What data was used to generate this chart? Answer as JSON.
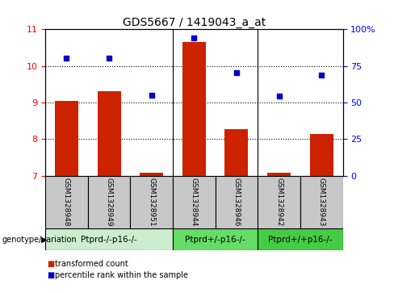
{
  "title": "GDS5667 / 1419043_a_at",
  "samples": [
    "GSM1328948",
    "GSM1328949",
    "GSM1328951",
    "GSM1328944",
    "GSM1328946",
    "GSM1328942",
    "GSM1328943"
  ],
  "bar_values": [
    9.05,
    9.3,
    7.08,
    10.65,
    8.28,
    7.08,
    8.15
  ],
  "dot_values": [
    10.22,
    10.22,
    9.2,
    10.76,
    9.82,
    9.18,
    9.76
  ],
  "bar_bottom": 7.0,
  "ylim_left": [
    7,
    11
  ],
  "ylim_right": [
    0,
    100
  ],
  "yticks_left": [
    7,
    8,
    9,
    10,
    11
  ],
  "yticks_right": [
    0,
    25,
    50,
    75,
    100
  ],
  "ytick_labels_right": [
    "0",
    "25",
    "50",
    "75",
    "100%"
  ],
  "groups": [
    {
      "label": "Ptprd-/-p16-/-",
      "start": 0,
      "end": 3,
      "color": "#cceecc"
    },
    {
      "label": "Ptprd+/-p16-/-",
      "start": 3,
      "end": 5,
      "color": "#66dd66"
    },
    {
      "label": "Ptprd+/+p16-/-",
      "start": 5,
      "end": 7,
      "color": "#44cc44"
    }
  ],
  "bar_color": "#cc2200",
  "dot_color": "#0000cc",
  "bg_color": "#c8c8c8",
  "legend_bar_label": "transformed count",
  "legend_dot_label": "percentile rank within the sample",
  "genotype_label": "genotype/variation",
  "grid_lines": [
    8,
    9,
    10
  ]
}
